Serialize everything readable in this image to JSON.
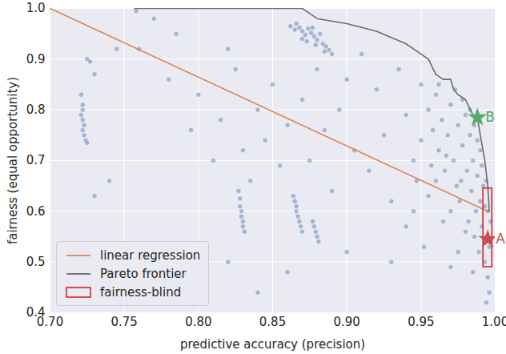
{
  "chart_data": {
    "type": "scatter",
    "xlabel": "predictive accuracy (precision)",
    "ylabel": "fairness (equal opportunity)",
    "xlim": [
      0.7,
      1.0
    ],
    "ylim": [
      0.4,
      1.0
    ],
    "xticks": [
      {
        "value": 0.7,
        "label": "0.70"
      },
      {
        "value": 0.75,
        "label": "0.75"
      },
      {
        "value": 0.8,
        "label": "0.80"
      },
      {
        "value": 0.85,
        "label": "0.85"
      },
      {
        "value": 0.9,
        "label": "0.90"
      },
      {
        "value": 0.95,
        "label": "0.95"
      },
      {
        "value": 1.0,
        "label": "1.00"
      }
    ],
    "yticks": [
      0.4,
      0.5,
      0.6,
      0.7,
      0.8,
      0.9,
      {
        "value": 1.0,
        "label": "1.0"
      }
    ],
    "grid": true,
    "legend": "lower left",
    "series": [
      {
        "type": "scatter",
        "color": "#4c72b0",
        "x": [
          0.862,
          0.865,
          0.868,
          0.87,
          0.872,
          0.874,
          0.876,
          0.878,
          0.88,
          0.882,
          0.884,
          0.886,
          0.888,
          0.87,
          0.866,
          0.873,
          0.879,
          0.885,
          0.89,
          0.877,
          0.721,
          0.722,
          0.722,
          0.721,
          0.722,
          0.723,
          0.722,
          0.723,
          0.724,
          0.725,
          0.725,
          0.727,
          0.73,
          0.745,
          0.827,
          0.828,
          0.828,
          0.829,
          0.829,
          0.83,
          0.83,
          0.831,
          0.864,
          0.865,
          0.866,
          0.866,
          0.867,
          0.868,
          0.869,
          0.87,
          0.877,
          0.878,
          0.879,
          0.88,
          0.881,
          0.758,
          0.76,
          0.77,
          0.78,
          0.785,
          0.795,
          0.8,
          0.81,
          0.815,
          0.82,
          0.825,
          0.83,
          0.835,
          0.84,
          0.845,
          0.85,
          0.855,
          0.86,
          0.87,
          0.875,
          0.88,
          0.885,
          0.89,
          0.895,
          0.9,
          0.905,
          0.91,
          0.915,
          0.92,
          0.925,
          0.93,
          0.935,
          0.94,
          0.945,
          0.95,
          0.74,
          0.82,
          0.86,
          0.9,
          0.93,
          0.84,
          0.73,
          0.955,
          0.958,
          0.96,
          0.962,
          0.964,
          0.966,
          0.968,
          0.97,
          0.972,
          0.974,
          0.975,
          0.976,
          0.978,
          0.98,
          0.981,
          0.982,
          0.983,
          0.984,
          0.985,
          0.986,
          0.987,
          0.988,
          0.989,
          0.99,
          0.99,
          0.991,
          0.992,
          0.993,
          0.994,
          0.995,
          0.995,
          0.996,
          0.997,
          0.996,
          0.994,
          0.985,
          0.975,
          0.965,
          0.955,
          0.945,
          0.96,
          0.97,
          0.98,
          0.95,
          0.962,
          0.973,
          0.978,
          0.983,
          0.988,
          0.991,
          0.993,
          0.994,
          0.986,
          0.977,
          0.967,
          0.957,
          0.947,
          0.94,
          0.952,
          0.97
        ],
        "values": [
          0.965,
          0.958,
          0.962,
          0.955,
          0.948,
          0.96,
          0.952,
          0.945,
          0.938,
          0.95,
          0.93,
          0.925,
          0.918,
          0.94,
          0.97,
          0.935,
          0.928,
          0.915,
          0.91,
          0.962,
          0.83,
          0.81,
          0.8,
          0.79,
          0.78,
          0.77,
          0.76,
          0.75,
          0.74,
          0.735,
          0.9,
          0.895,
          0.87,
          0.92,
          0.64,
          0.625,
          0.61,
          0.6,
          0.59,
          0.58,
          0.57,
          0.56,
          0.63,
          0.62,
          0.61,
          0.6,
          0.59,
          0.58,
          0.57,
          0.56,
          0.58,
          0.57,
          0.56,
          0.55,
          0.54,
          0.995,
          0.92,
          0.98,
          0.86,
          0.95,
          0.76,
          0.83,
          0.7,
          0.78,
          0.92,
          0.88,
          0.72,
          0.66,
          0.8,
          0.74,
          0.85,
          0.69,
          0.77,
          0.82,
          0.7,
          0.88,
          0.76,
          0.64,
          0.8,
          0.86,
          0.72,
          0.91,
          0.68,
          0.84,
          0.75,
          0.62,
          0.88,
          0.79,
          0.7,
          0.85,
          0.66,
          0.5,
          0.48,
          0.52,
          0.5,
          0.44,
          0.63,
          0.8,
          0.76,
          0.83,
          0.72,
          0.78,
          0.68,
          0.75,
          0.81,
          0.7,
          0.65,
          0.77,
          0.62,
          0.73,
          0.79,
          0.68,
          0.58,
          0.75,
          0.64,
          0.7,
          0.55,
          0.6,
          0.67,
          0.52,
          0.72,
          0.62,
          0.57,
          0.65,
          0.5,
          0.55,
          0.6,
          0.47,
          0.53,
          0.58,
          0.44,
          0.42,
          0.48,
          0.52,
          0.58,
          0.63,
          0.6,
          0.66,
          0.6,
          0.56,
          0.74,
          0.85,
          0.84,
          0.82,
          0.8,
          0.74,
          0.69,
          0.61,
          0.66,
          0.77,
          0.66,
          0.71,
          0.69,
          0.66,
          0.57,
          0.53,
          0.49
        ]
      },
      {
        "name": "linear regression",
        "type": "line",
        "color": "#dd8452",
        "x": [
          0.7,
          0.995
        ],
        "values": [
          1.0,
          0.6
        ]
      },
      {
        "name": "Pareto frontier",
        "type": "line",
        "color": "#6b6b6b",
        "x": [
          0.757,
          0.87,
          0.875,
          0.88,
          0.9,
          0.92,
          0.94,
          0.955,
          0.96,
          0.965,
          0.97,
          0.972,
          0.975,
          0.98,
          0.985,
          0.988,
          0.99,
          0.993,
          0.995,
          0.996
        ],
        "values": [
          1.0,
          1.0,
          0.99,
          0.98,
          0.97,
          0.955,
          0.93,
          0.9,
          0.87,
          0.86,
          0.86,
          0.84,
          0.83,
          0.82,
          0.79,
          0.785,
          0.75,
          0.7,
          0.65,
          0.6
        ]
      },
      {
        "name": "fairness-blind",
        "type": "rect",
        "color": "#d62728",
        "x": [
          0.992,
          0.998
        ],
        "values": [
          0.49,
          0.645
        ]
      }
    ],
    "annotations": [
      {
        "label": "A",
        "x": 0.995,
        "y": 0.545,
        "color": "#c44e52",
        "marker": "star"
      },
      {
        "label": "B",
        "x": 0.988,
        "y": 0.785,
        "color": "#55a868",
        "marker": "star"
      }
    ]
  }
}
